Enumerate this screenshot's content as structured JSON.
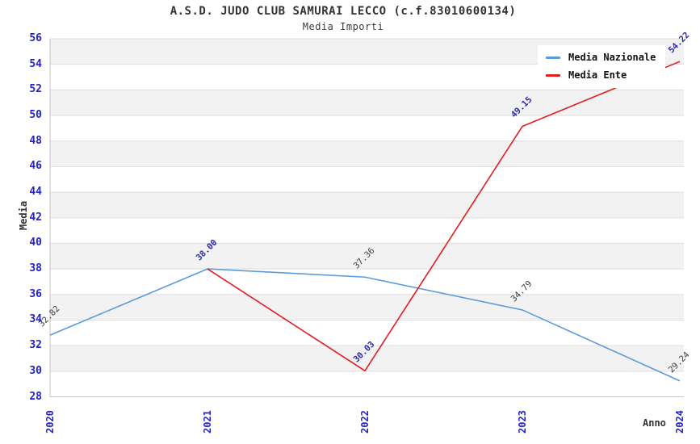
{
  "title": "A.S.D. JUDO CLUB SAMURAI LECCO (c.f.83010600134)",
  "subtitle": "Media Importi",
  "colors": {
    "background": "#ffffff",
    "band_gray": "#f2f2f2",
    "gridline": "#dedede",
    "axis_line": "#c4c4c4",
    "axis_tick_label": "#2323cb",
    "title_text": "#333333",
    "legend_text": "#111111",
    "series_nazionale": "#5b9bd8",
    "series_ente": "#e51c1c",
    "label_nazionale": "#3c3c3c",
    "label_ente": "#2b2ba8"
  },
  "chart_data": {
    "type": "line",
    "title": "A.S.D. JUDO CLUB SAMURAI LECCO (c.f.83010600134)",
    "subtitle": "Media Importi",
    "x": [
      "2020",
      "2021",
      "2022",
      "2023",
      "2024"
    ],
    "xlabel": "Anno",
    "ylabel": "Media",
    "ylim": [
      28,
      56
    ],
    "ytick_step": 2,
    "grid": "horizontal-bands-alternating",
    "legend_position": "top-right",
    "series": [
      {
        "name": "Media Nazionale",
        "color": "#5b9bd8",
        "label_color": "#3c3c3c",
        "label_bold": false,
        "values": [
          32.82,
          38.0,
          37.36,
          34.79,
          29.24
        ],
        "point_labels": [
          "32.82",
          null,
          "37.36",
          "34.79",
          "29.24"
        ]
      },
      {
        "name": "Media Ente",
        "color": "#e51c1c",
        "label_color": "#2b2ba8",
        "label_bold": true,
        "values": [
          null,
          38.0,
          30.03,
          49.15,
          54.22
        ],
        "point_labels": [
          null,
          "38.00",
          "30.03",
          "49.15",
          "54.22"
        ]
      }
    ]
  }
}
